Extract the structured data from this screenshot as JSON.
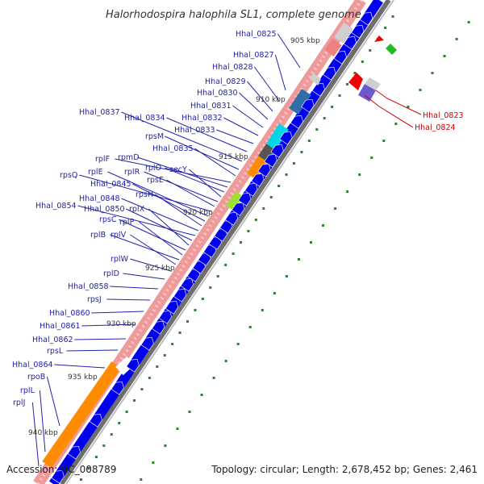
{
  "title": "Halorhodospira halophila SL1, complete genome",
  "accession": "Accession: NC_008789",
  "topology": "Topology: circular; Length: 2,678,452 bp; Genes: 2,461",
  "kbp_markers": [
    "905 kbp",
    "910 kbp",
    "915 kbp",
    "920 kbp",
    "925 kbp",
    "930 kbp",
    "935 kbp",
    "940 kbp"
  ],
  "gene_labels": [
    "Hhal_0825",
    "Hhal_0827",
    "Hhal_0828",
    "Hhal_0829",
    "Hhal_0830",
    "Hhal_0831",
    "Hhal_0832",
    "Hhal_0833",
    "Hhal_0834",
    "Hhal_0837",
    "rpsM",
    "Hhal_0835",
    "rplF",
    "rpmD",
    "rplO",
    "secY",
    "rplR",
    "rpsE",
    "rpsQ",
    "rplE",
    "Hhal_0845",
    "rpsH",
    "Hhal_0848",
    "Hhal_0854",
    "Hhal_0850",
    "rplX",
    "rpsC",
    "rplP",
    "rplB",
    "rplV",
    "rplW",
    "rplD",
    "Hhal_0858",
    "rpsJ",
    "Hhal_0860",
    "Hhal_0861",
    "Hhal_0862",
    "rpsL",
    "Hhal_0864",
    "rpoB",
    "rplL",
    "rplJ"
  ],
  "highlight_labels": [
    "Hhal_0823",
    "Hhal_0824"
  ],
  "colors": {
    "backbone": "#8c8c8c",
    "cds_forward": "#0000ee",
    "cds_reverse": "#ee9090",
    "highlight": "#ee0000",
    "gc_dots": "#228b22",
    "label_blue": "#2222aa",
    "label_red": "#cc0000"
  }
}
